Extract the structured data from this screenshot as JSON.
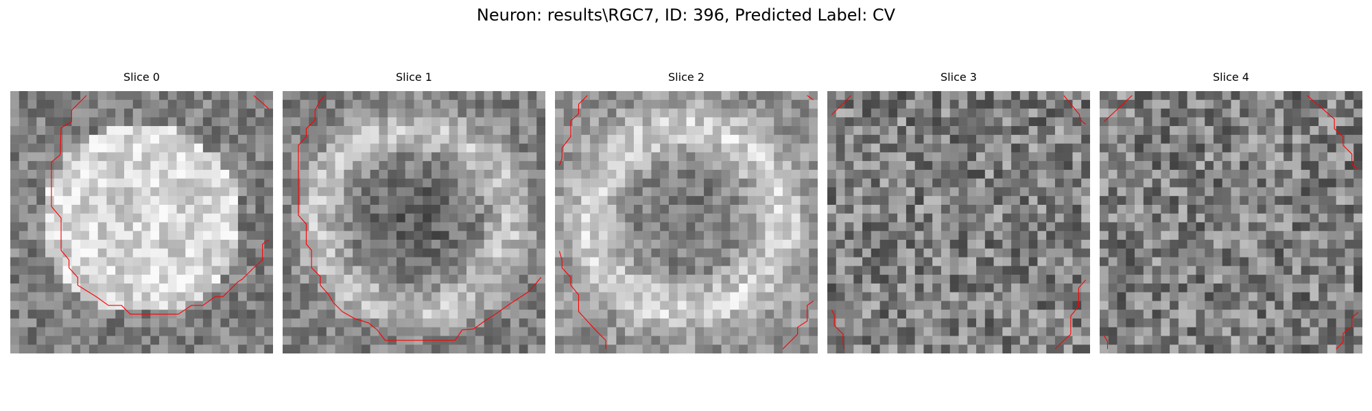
{
  "figure": {
    "title": "Neuron: results\\RGC7, ID: 396, Predicted Label: CV",
    "contour_color": "#ff0000",
    "colormap": "gray"
  },
  "panels": [
    {
      "title": "Slice 0",
      "mean_intensity": 0.62,
      "bright_region": "disc"
    },
    {
      "title": "Slice 1",
      "mean_intensity": 0.5,
      "bright_region": "ring"
    },
    {
      "title": "Slice 2",
      "mean_intensity": 0.58,
      "bright_region": "ring"
    },
    {
      "title": "Slice 3",
      "mean_intensity": 0.5,
      "bright_region": "noise"
    },
    {
      "title": "Slice 4",
      "mean_intensity": 0.5,
      "bright_region": "noise"
    }
  ]
}
